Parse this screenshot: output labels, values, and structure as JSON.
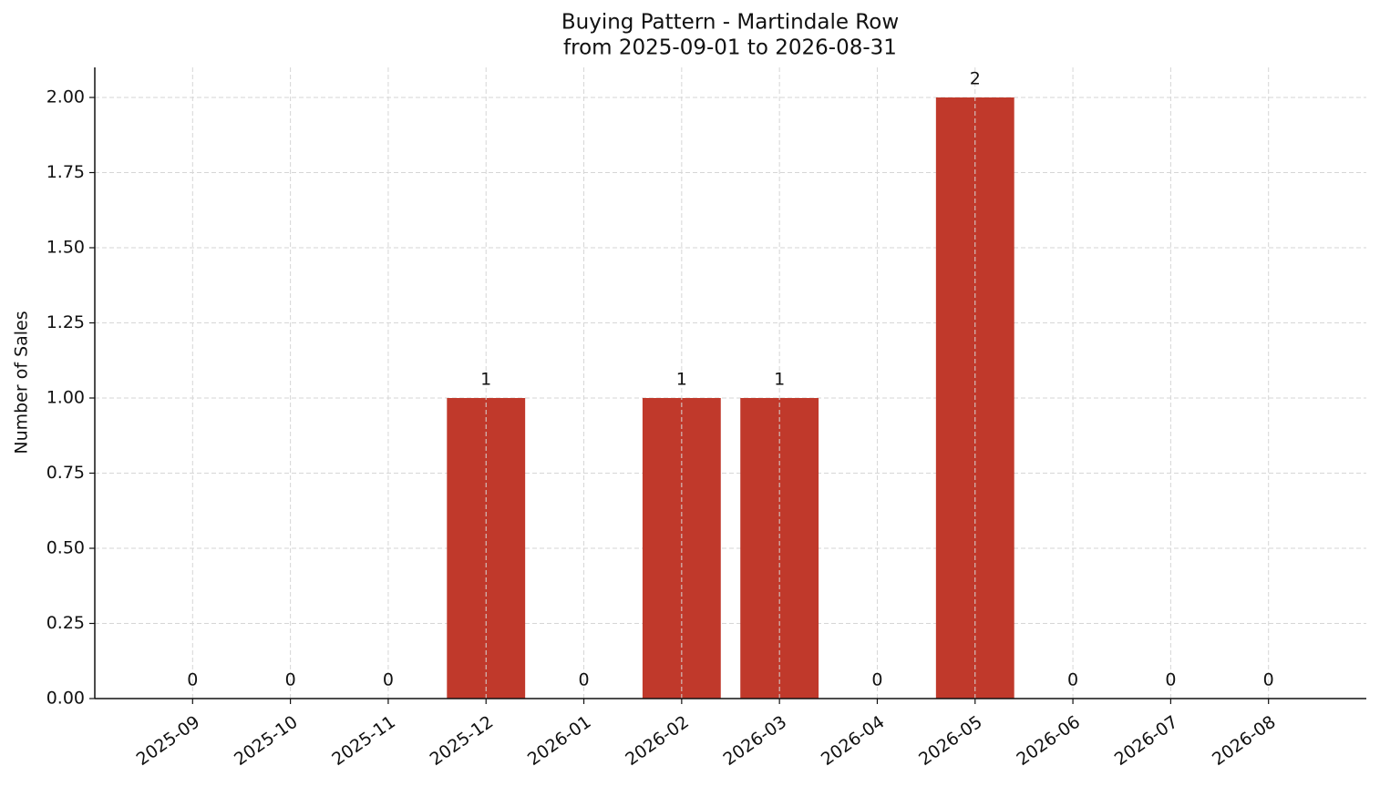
{
  "chart_data": {
    "type": "bar",
    "title": "Buying Pattern - Martindale Row",
    "subtitle": "from 2025-09-01 to 2026-08-31",
    "ylabel": "Number of Sales",
    "categories": [
      "2025-09",
      "2025-10",
      "2025-11",
      "2025-12",
      "2026-01",
      "2026-02",
      "2026-03",
      "2026-04",
      "2026-05",
      "2026-06",
      "2026-07",
      "2026-08"
    ],
    "values": [
      0,
      0,
      0,
      1,
      0,
      1,
      1,
      0,
      2,
      0,
      0,
      0
    ],
    "color": "#c0392b",
    "ylim": [
      0,
      2.1
    ],
    "yticks": [
      {
        "value": 0,
        "label": "0.00"
      },
      {
        "value": 0.25,
        "label": "0.25"
      },
      {
        "value": 0.5,
        "label": "0.50"
      },
      {
        "value": 0.75,
        "label": "0.75"
      },
      {
        "value": 1,
        "label": "1.00"
      },
      {
        "value": 1.25,
        "label": "1.25"
      },
      {
        "value": 1.5,
        "label": "1.50"
      },
      {
        "value": 1.75,
        "label": "1.75"
      },
      {
        "value": 2,
        "label": "2.00"
      }
    ],
    "grid": true
  }
}
